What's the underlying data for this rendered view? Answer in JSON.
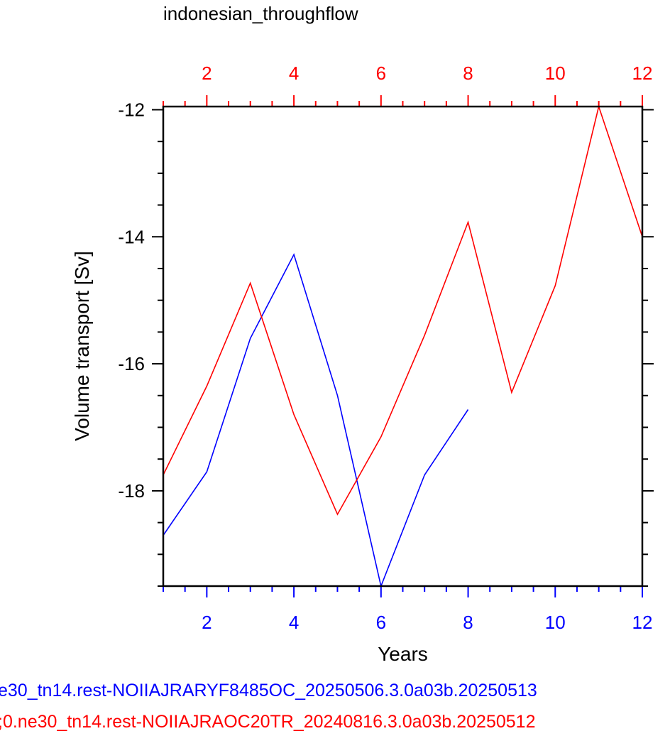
{
  "chart_data": {
    "type": "line",
    "title": "indonesian_throughflow",
    "xlabel": "Years",
    "ylabel": "Volume transport [Sv]",
    "xlim": [
      1,
      12
    ],
    "ylim": [
      -19.5,
      -11.95
    ],
    "x_ticks_major": [
      2,
      4,
      6,
      8,
      10,
      12
    ],
    "y_ticks_major": [
      -12,
      -14,
      -16,
      -18
    ],
    "grid": false,
    "series": [
      {
        "name": "e30_tn14.rest-NOIIAJRARYF8485OC_20250506.3.0a03b.20250513",
        "color": "#0000ff",
        "x": [
          1,
          2,
          3,
          4,
          5,
          6,
          7,
          8
        ],
        "y": [
          -18.7,
          -17.7,
          -15.6,
          -14.28,
          -16.5,
          -19.5,
          -17.75,
          -16.72
        ]
      },
      {
        "name": ";0.ne30_tn14.rest-NOIIAJRAOC20TR_20240816.3.0a03b.20250512",
        "color": "#ff0000",
        "x": [
          1,
          2,
          3,
          4,
          5,
          6,
          7,
          8,
          9,
          10,
          11,
          12
        ],
        "y": [
          -17.75,
          -16.35,
          -14.73,
          -16.8,
          -18.37,
          -17.15,
          -15.55,
          -13.77,
          -16.45,
          -14.77,
          -11.95,
          -14.0
        ]
      }
    ],
    "bottom_axis_color": "#0000ff",
    "top_axis_color": "#ff0000"
  }
}
